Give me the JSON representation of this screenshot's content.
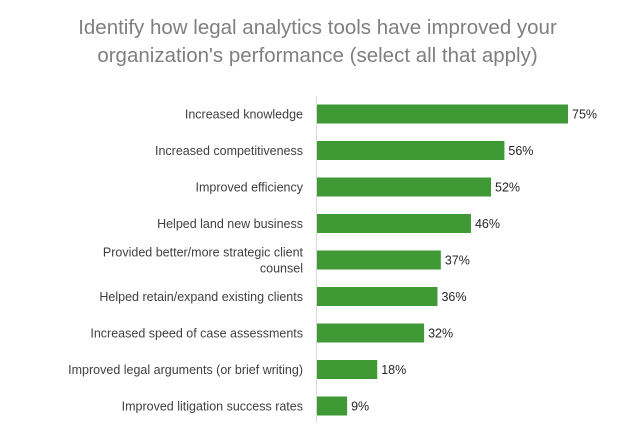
{
  "chart_data": {
    "type": "bar",
    "orientation": "horizontal",
    "title": "Identify how legal analytics tools have improved your organization's performance (select all that apply)",
    "title_lines": [
      "Identify how legal analytics tools have improved your",
      "organization's performance (select all that apply)"
    ],
    "categories": [
      "Increased knowledge",
      "Increased competitiveness",
      "Improved efficiency",
      "Helped land new business",
      "Provided better/more strategic client counsel",
      "Helped retain/expand existing clients",
      "Increased speed of case assessments",
      "Improved legal arguments (or brief writing)",
      "Improved litigation success rates"
    ],
    "category_lines": [
      [
        "Increased knowledge"
      ],
      [
        "Increased competitiveness"
      ],
      [
        "Improved efficiency"
      ],
      [
        "Helped land new business"
      ],
      [
        "Provided better/more strategic client",
        "counsel"
      ],
      [
        "Helped retain/expand existing clients"
      ],
      [
        "Increased speed of case assessments"
      ],
      [
        "Improved legal arguments (or brief writing)"
      ],
      [
        "Improved litigation success rates"
      ]
    ],
    "values": [
      75,
      56,
      52,
      46,
      37,
      36,
      32,
      18,
      9
    ],
    "value_labels": [
      "75%",
      "56%",
      "52%",
      "46%",
      "37%",
      "36%",
      "32%",
      "18%",
      "9%"
    ],
    "unit": "%",
    "xlim": [
      0,
      80
    ],
    "grid": false,
    "legend": "none",
    "bar_color": "#3f9a35",
    "axis_color": "#d9d9d9"
  }
}
